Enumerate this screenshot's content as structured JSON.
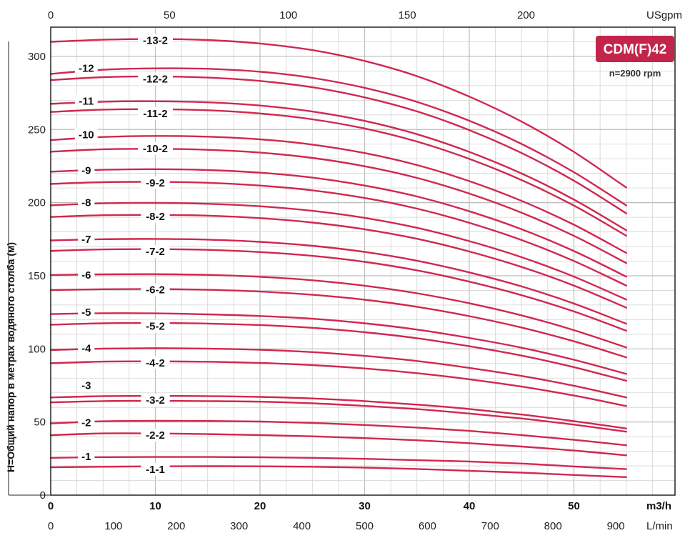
{
  "chart_data": {
    "type": "line",
    "title": "CDM(F)42",
    "subtitle": "n=2900 rpm",
    "ylabel": "H=Общий напор в метрах водяного столба (м)",
    "x_bottom_unit": "m3/h",
    "x_lmin_unit": "L/min",
    "x_top_unit": "USgpm",
    "xlim": [
      0,
      55.3
    ],
    "ylim": [
      0,
      320
    ],
    "x_bottom_ticks": [
      "0",
      "10",
      "20",
      "30",
      "40",
      "50"
    ],
    "x_lmin_ticks": [
      "0",
      "100",
      "200",
      "300",
      "400",
      "500",
      "600",
      "700",
      "800",
      "900"
    ],
    "x_top_ticks": [
      "0",
      "50",
      "100",
      "150",
      "200"
    ],
    "y_ticks": [
      "0",
      "50",
      "100",
      "150",
      "200",
      "250",
      "300"
    ],
    "grid": true,
    "x": [
      0,
      5,
      10,
      15,
      20,
      25,
      30,
      35,
      40,
      45,
      50,
      55
    ],
    "series": [
      {
        "name": "-1-1",
        "values": [
          19.0,
          19.4,
          19.7,
          19.8,
          19.7,
          19.4,
          18.8,
          17.9,
          16.6,
          15.4,
          13.8,
          12.3
        ]
      },
      {
        "name": "-1",
        "values": [
          25.5,
          26.0,
          26.1,
          26.1,
          25.9,
          25.5,
          24.8,
          23.9,
          23.0,
          21.6,
          19.6,
          17.8
        ]
      },
      {
        "name": "-2-2",
        "values": [
          41.0,
          42.2,
          42.2,
          41.7,
          41.1,
          40.2,
          39.0,
          37.5,
          35.5,
          33.2,
          30.5,
          27.2
        ]
      },
      {
        "name": "-2",
        "values": [
          49.0,
          50.5,
          50.8,
          50.7,
          50.3,
          49.4,
          48.0,
          46.2,
          43.9,
          41.1,
          37.8,
          34.1
        ]
      },
      {
        "name": "-3-2",
        "values": [
          63.4,
          64.3,
          64.5,
          64.3,
          63.9,
          62.8,
          61.0,
          58.8,
          55.8,
          52.4,
          48.2,
          43.4
        ]
      },
      {
        "name": "-3",
        "values": [
          66.8,
          67.7,
          67.9,
          67.7,
          67.2,
          66.1,
          64.3,
          61.9,
          58.9,
          55.1,
          50.6,
          45.6
        ]
      },
      {
        "name": "-4-2",
        "values": [
          90.2,
          91.3,
          91.5,
          91.2,
          90.4,
          88.9,
          86.6,
          83.4,
          79.2,
          74.2,
          68.1,
          60.9
        ]
      },
      {
        "name": "-4",
        "values": [
          99.2,
          100.2,
          100.5,
          100.2,
          99.4,
          97.8,
          95.2,
          91.7,
          87.0,
          81.5,
          74.8,
          66.8
        ]
      },
      {
        "name": "-5-2",
        "values": [
          116.5,
          117.5,
          117.7,
          117.3,
          116.3,
          114.4,
          111.4,
          107.3,
          101.8,
          95.4,
          87.5,
          78.2
        ]
      },
      {
        "name": "-5",
        "values": [
          123.8,
          124.4,
          124.3,
          123.6,
          122.5,
          120.6,
          117.5,
          113.2,
          107.5,
          100.8,
          92.6,
          82.9
        ]
      },
      {
        "name": "-6-2",
        "values": [
          140.2,
          140.8,
          140.9,
          140.4,
          139.2,
          137.0,
          133.6,
          128.8,
          122.4,
          114.6,
          105.2,
          94.2
        ]
      },
      {
        "name": "-6",
        "values": [
          150.5,
          151.0,
          151.1,
          150.6,
          149.3,
          146.9,
          143.2,
          138.0,
          131.2,
          122.9,
          112.8,
          101.0
        ]
      },
      {
        "name": "-7-2",
        "values": [
          167.0,
          168.0,
          168.2,
          167.7,
          166.2,
          163.6,
          159.5,
          153.7,
          146.0,
          136.7,
          125.6,
          112.4
        ]
      },
      {
        "name": "-7",
        "values": [
          174.2,
          175.0,
          175.2,
          174.7,
          173.2,
          170.5,
          166.3,
          160.3,
          152.3,
          142.7,
          131.0,
          117.2
        ]
      },
      {
        "name": "-8-2",
        "values": [
          190.2,
          191.4,
          191.6,
          191.1,
          189.4,
          186.4,
          181.8,
          175.3,
          166.6,
          156.0,
          143.3,
          128.2
        ]
      },
      {
        "name": "-8",
        "values": [
          198.2,
          199.5,
          199.8,
          199.2,
          197.5,
          194.4,
          189.6,
          182.8,
          173.7,
          162.7,
          149.4,
          133.7
        ]
      },
      {
        "name": "-9-2",
        "values": [
          212.8,
          214.0,
          214.2,
          213.6,
          211.7,
          208.4,
          203.2,
          195.9,
          186.2,
          174.4,
          160.1,
          143.3
        ]
      },
      {
        "name": "-9",
        "values": [
          221.2,
          222.5,
          222.9,
          222.3,
          220.5,
          217.1,
          211.7,
          204.2,
          194.1,
          181.8,
          166.9,
          149.4
        ]
      },
      {
        "name": "-10-2",
        "values": [
          234.8,
          236.5,
          236.8,
          236.1,
          234.2,
          230.6,
          224.9,
          216.9,
          206.2,
          193.1,
          177.3,
          158.7
        ]
      },
      {
        "name": "-10",
        "values": [
          242.8,
          244.9,
          245.6,
          245.1,
          243.3,
          239.7,
          233.9,
          225.7,
          214.7,
          201.2,
          184.9,
          165.6
        ]
      },
      {
        "name": "-11-2",
        "values": [
          262.0,
          263.6,
          263.9,
          263.2,
          261.0,
          257.0,
          250.7,
          241.8,
          229.9,
          215.4,
          198.0,
          177.4
        ]
      },
      {
        "name": "-11",
        "values": [
          267.6,
          269.0,
          269.3,
          268.6,
          266.4,
          262.3,
          255.9,
          246.8,
          234.7,
          219.9,
          202.1,
          181.1
        ]
      },
      {
        "name": "-12-2",
        "values": [
          283.8,
          285.8,
          286.3,
          285.5,
          283.2,
          278.9,
          272.0,
          262.4,
          249.6,
          233.9,
          215.0,
          192.7
        ]
      },
      {
        "name": "-12",
        "values": [
          288.0,
          290.9,
          291.8,
          291.5,
          289.5,
          285.3,
          278.5,
          268.9,
          256.0,
          240.1,
          220.8,
          198.1
        ]
      },
      {
        "name": "-13-2",
        "values": [
          310.0,
          311.4,
          311.9,
          311.2,
          308.8,
          304.3,
          296.9,
          286.5,
          272.5,
          255.4,
          234.7,
          210.3
        ]
      }
    ],
    "curve_labels": [
      {
        "text": "-1-1",
        "x": 10,
        "y": 17.5
      },
      {
        "text": "-1",
        "x": 3.4,
        "y": 26.5
      },
      {
        "text": "-2-2",
        "x": 10,
        "y": 41.0
      },
      {
        "text": "-2",
        "x": 3.4,
        "y": 49.5
      },
      {
        "text": "-3-2",
        "x": 10,
        "y": 65.0
      },
      {
        "text": "-3",
        "x": 3.4,
        "y": 75.0
      },
      {
        "text": "-4-2",
        "x": 10,
        "y": 90.5
      },
      {
        "text": "-4",
        "x": 3.4,
        "y": 100.5
      },
      {
        "text": "-5-2",
        "x": 10,
        "y": 115.5
      },
      {
        "text": "-5",
        "x": 3.4,
        "y": 125.0
      },
      {
        "text": "-6-2",
        "x": 10,
        "y": 140.5
      },
      {
        "text": "-6",
        "x": 3.4,
        "y": 150.5
      },
      {
        "text": "-7-2",
        "x": 10,
        "y": 166.5
      },
      {
        "text": "-7",
        "x": 3.4,
        "y": 175.0
      },
      {
        "text": "-8-2",
        "x": 10,
        "y": 190.5
      },
      {
        "text": "-8",
        "x": 3.4,
        "y": 200.0
      },
      {
        "text": "-9-2",
        "x": 10,
        "y": 213.5
      },
      {
        "text": "-9",
        "x": 3.4,
        "y": 222.0
      },
      {
        "text": "-10-2",
        "x": 10,
        "y": 237.0
      },
      {
        "text": "-10",
        "x": 3.4,
        "y": 246.5
      },
      {
        "text": "-11-2",
        "x": 10,
        "y": 261.0
      },
      {
        "text": "-11",
        "x": 3.4,
        "y": 269.5
      },
      {
        "text": "-12-2",
        "x": 10,
        "y": 284.5
      },
      {
        "text": "-12",
        "x": 3.4,
        "y": 292.0
      },
      {
        "text": "-13-2",
        "x": 10,
        "y": 311.0
      }
    ],
    "colors": {
      "curve": "#d1284f",
      "badge": "#c3244a",
      "grid": "#d3d3d3"
    }
  }
}
